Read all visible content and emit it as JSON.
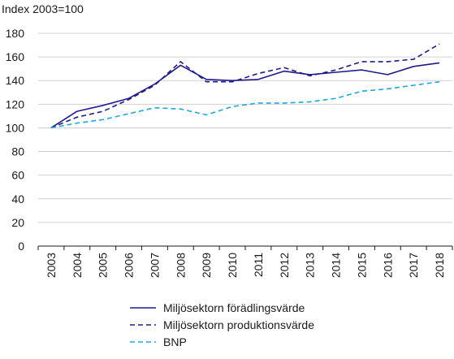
{
  "chart_data": {
    "type": "line",
    "ylabel": "Index 2003=100",
    "ylim": [
      0,
      180
    ],
    "yticks": [
      0,
      20,
      40,
      60,
      80,
      100,
      120,
      140,
      160,
      180
    ],
    "categories": [
      "2003",
      "2004",
      "2005",
      "2006",
      "2007",
      "2008",
      "2009",
      "2010",
      "2011",
      "2012",
      "2013",
      "2014",
      "2015",
      "2016",
      "2017",
      "2018"
    ],
    "grid": "horizontal",
    "legend_position": "bottom",
    "series": [
      {
        "name": "Miljösektorn förädlingsvärde",
        "style": "solid",
        "color": "#1f1a8c",
        "values": [
          100,
          114,
          119,
          125,
          137,
          153,
          141,
          140,
          141,
          148,
          145,
          147,
          149,
          145,
          152,
          155
        ]
      },
      {
        "name": "Miljösektorn produktionsvärde",
        "style": "dashed",
        "color": "#1f1a8c",
        "values": [
          100,
          109,
          114,
          124,
          136,
          156,
          139,
          139,
          146,
          151,
          144,
          149,
          156,
          156,
          158,
          171
        ]
      },
      {
        "name": "BNP",
        "style": "dashed",
        "color": "#1ea8e0",
        "values": [
          100,
          104,
          107,
          112,
          117,
          116,
          111,
          118,
          121,
          121,
          122,
          125,
          131,
          133,
          136,
          139
        ]
      }
    ]
  }
}
